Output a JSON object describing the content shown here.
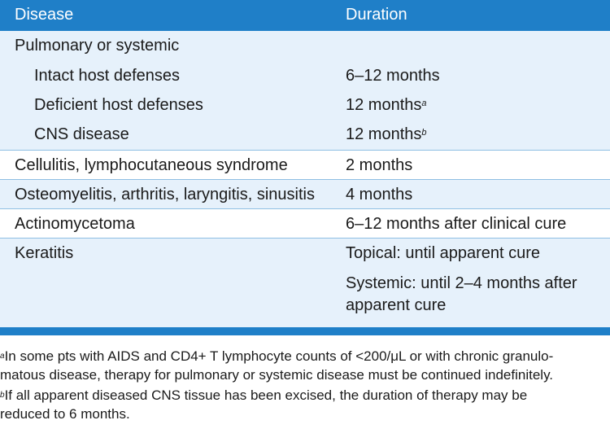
{
  "header": {
    "disease": "Disease",
    "duration": "Duration"
  },
  "rows": {
    "pulmonary": {
      "disease": "Pulmonary or systemic"
    },
    "intact": {
      "disease": "Intact host defenses",
      "duration": "6–12 months"
    },
    "deficient": {
      "disease": "Deficient host defenses",
      "duration": "12 months",
      "mark": "a"
    },
    "cns": {
      "disease": "CNS disease",
      "duration": "12 months",
      "mark": "b"
    },
    "cellulitis": {
      "disease": "Cellulitis, lymphocutaneous syndrome",
      "duration": "2 months"
    },
    "osteomyelitis": {
      "disease": "Osteomyelitis, arthritis, laryngitis, sinusitis",
      "duration": "4 months"
    },
    "actinomycetoma": {
      "disease": "Actinomycetoma",
      "duration": "6–12 months after clinical cure"
    },
    "keratitis": {
      "disease": "Keratitis",
      "duration_topical": "Topical: until apparent cure",
      "duration_systemic_1": "Systemic: until 2–4 months after",
      "duration_systemic_2": "apparent cure"
    }
  },
  "footnotes": {
    "a_mark": "a",
    "a_line1": "In some pts with AIDS and CD4+ T lymphocyte counts of <200/μL or with chronic granulo-",
    "a_line2": "matous disease, therapy for pulmonary or systemic disease must be continued indefinitely.",
    "b_mark": "b",
    "b_line1": "If all apparent diseased CNS tissue has been excised, the duration of therapy may be",
    "b_line2": "reduced to 6 months."
  },
  "colors": {
    "header": "#1f7fc8",
    "shaded_row": "#e6f1fb",
    "separator": "#8fbfe3"
  }
}
